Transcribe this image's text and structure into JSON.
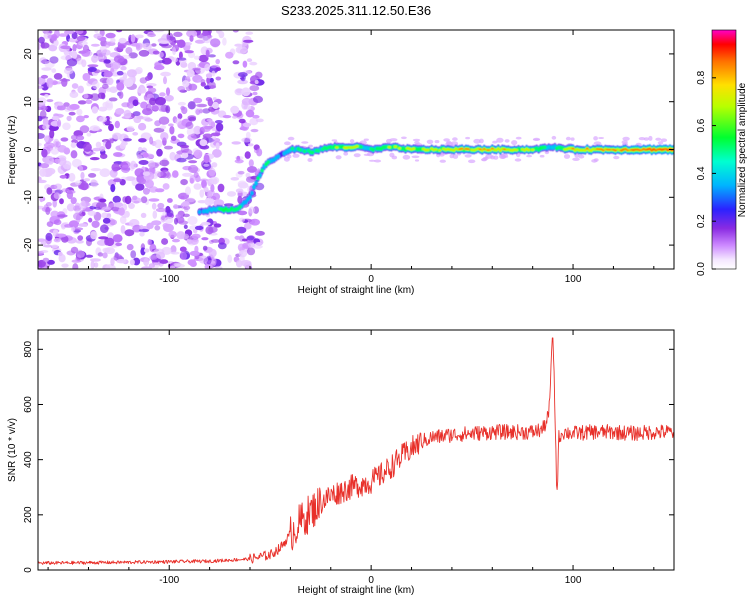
{
  "figure": {
    "title": "S233.2025.311.12.50.E36"
  },
  "chart_data": [
    {
      "type": "heatmap",
      "name": "spectrogram",
      "xlabel": "Height of straight line (km)",
      "ylabel": "Frequency (Hz)",
      "xlim": [
        -165,
        150
      ],
      "ylim": [
        -25,
        25
      ],
      "xticks": [
        -100,
        0,
        100
      ],
      "yticks": [
        -20,
        -10,
        0,
        10,
        20
      ],
      "colorbar": {
        "label": "Normalized spectral amplitude",
        "range": [
          0,
          1
        ],
        "ticks": [
          0.0,
          0.2,
          0.4,
          0.6,
          0.8
        ]
      },
      "noise_region_x": [
        -165,
        -55
      ],
      "ridge": {
        "x": [
          -85,
          -78,
          -72,
          -66,
          -60,
          -56,
          -52,
          -48,
          -44,
          -40,
          -35,
          -30,
          -25,
          -20,
          -15,
          -10,
          -5,
          0,
          10,
          20,
          40,
          60,
          80,
          90,
          100,
          120,
          130,
          150
        ],
        "frequency": [
          -13,
          -12.5,
          -12.5,
          -12.5,
          -10,
          -6,
          -3,
          -2,
          -1,
          0,
          0,
          -0.5,
          0,
          0.5,
          0.5,
          0.5,
          0.5,
          0,
          0.5,
          0,
          0,
          0,
          0,
          0.5,
          0,
          0,
          0,
          0
        ],
        "amplitude": [
          0.35,
          0.45,
          0.6,
          0.5,
          0.35,
          0.45,
          0.5,
          0.4,
          0.35,
          0.45,
          0.55,
          0.5,
          0.45,
          0.55,
          0.7,
          0.8,
          0.55,
          0.5,
          0.65,
          0.7,
          0.75,
          0.85,
          0.7,
          0.45,
          0.8,
          0.8,
          0.95,
          1.0
        ]
      }
    },
    {
      "type": "line",
      "name": "snr",
      "xlabel": "Height of straight line (km)",
      "ylabel": "SNR (10 * v/v)",
      "xlim": [
        -165,
        150
      ],
      "ylim": [
        0,
        870
      ],
      "xticks": [
        -100,
        0,
        100
      ],
      "yticks": [
        0,
        200,
        400,
        600,
        800
      ],
      "series": [
        {
          "name": "SNR",
          "color": "#e8302a",
          "x": [
            -165,
            -120,
            -80,
            -60,
            -50,
            -45,
            -40,
            -35,
            -30,
            -25,
            -20,
            -15,
            -10,
            -5,
            0,
            5,
            10,
            15,
            20,
            25,
            30,
            40,
            50,
            60,
            70,
            80,
            85,
            88,
            90,
            91,
            92,
            93,
            95,
            100,
            110,
            120,
            130,
            140,
            150
          ],
          "y": [
            25,
            28,
            32,
            40,
            55,
            80,
            130,
            175,
            210,
            245,
            270,
            285,
            300,
            310,
            320,
            345,
            375,
            410,
            440,
            465,
            480,
            490,
            495,
            500,
            500,
            500,
            510,
            560,
            860,
            590,
            260,
            480,
            500,
            495,
            500,
            500,
            495,
            500,
            500
          ]
        }
      ]
    }
  ],
  "colors": {
    "axis": "#000000",
    "line": "#e8302a",
    "noise": "#8a33e8"
  }
}
